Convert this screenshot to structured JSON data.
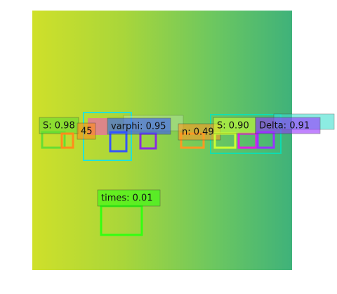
{
  "detections": [
    {
      "label": "S: 0.98"
    },
    {
      "label": "45"
    },
    {
      "label": "varphi: 0.95"
    },
    {
      "label": "n: 0.49"
    },
    {
      "label": "S: 0.90"
    },
    {
      "label": "Delta: 0.91"
    },
    {
      "label": "times: 0.01"
    }
  ]
}
